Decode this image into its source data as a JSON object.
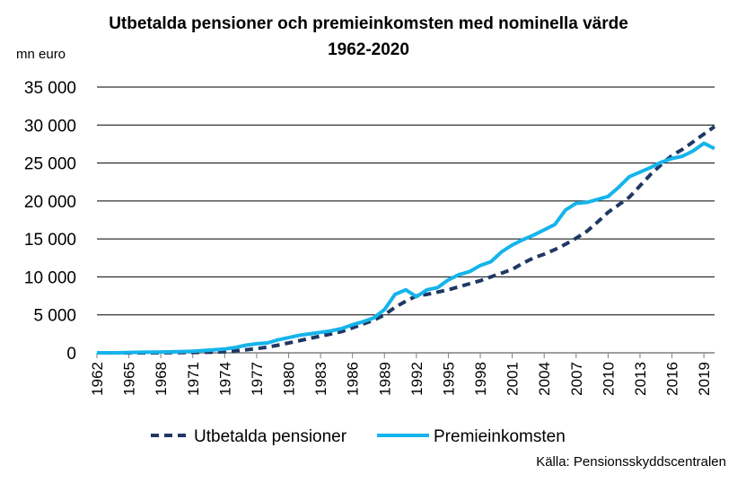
{
  "header": {
    "title_line1": "Utbetalda pensioner och premieinkomsten med nominella värde",
    "title_line2": "1962-2020",
    "unit": "mn euro"
  },
  "footer": {
    "source": "Källa: Pensionsskyddscentralen"
  },
  "chart_data": {
    "type": "line",
    "title": "Utbetalda pensioner och premieinkomsten med nominella värde 1962-2020",
    "ylabel": "mn euro",
    "xlabel": "",
    "ylim": [
      0,
      35000
    ],
    "xlim": [
      1962,
      2020
    ],
    "y_ticks": [
      0,
      5000,
      10000,
      15000,
      20000,
      25000,
      30000,
      35000
    ],
    "y_tick_labels": [
      "0",
      "5 000",
      "10 000",
      "15 000",
      "20 000",
      "25 000",
      "30 000",
      "35 000"
    ],
    "x_ticks": [
      1962,
      1965,
      1968,
      1971,
      1974,
      1977,
      1980,
      1983,
      1986,
      1989,
      1992,
      1995,
      1998,
      2001,
      2004,
      2007,
      2010,
      2013,
      2016,
      2019
    ],
    "x_tick_labels": [
      "1962",
      "1965",
      "1968",
      "1971",
      "1974",
      "1977",
      "1980",
      "1983",
      "1986",
      "1989",
      "1992",
      "1995",
      "1998",
      "2001",
      "2004",
      "2007",
      "2010",
      "2013",
      "2016",
      "2019"
    ],
    "grid": "horizontal",
    "legend_position": "bottom",
    "x": [
      1962,
      1963,
      1964,
      1965,
      1966,
      1967,
      1968,
      1969,
      1970,
      1971,
      1972,
      1973,
      1974,
      1975,
      1976,
      1977,
      1978,
      1979,
      1980,
      1981,
      1982,
      1983,
      1984,
      1985,
      1986,
      1987,
      1988,
      1989,
      1990,
      1991,
      1992,
      1993,
      1994,
      1995,
      1996,
      1997,
      1998,
      1999,
      2000,
      2001,
      2002,
      2003,
      2004,
      2005,
      2006,
      2007,
      2008,
      2009,
      2010,
      2011,
      2012,
      2013,
      2014,
      2015,
      2016,
      2017,
      2018,
      2019,
      2020
    ],
    "series": [
      {
        "name": "Utbetalda pensioner",
        "color": "#1f3864",
        "style": "dashed",
        "values": [
          0,
          0,
          0,
          0,
          0,
          0,
          10,
          20,
          30,
          50,
          70,
          100,
          150,
          250,
          400,
          550,
          750,
          1000,
          1300,
          1600,
          1900,
          2200,
          2500,
          2800,
          3300,
          3800,
          4300,
          5000,
          6000,
          6800,
          7500,
          7700,
          8000,
          8300,
          8700,
          9100,
          9500,
          10000,
          10500,
          11000,
          11800,
          12500,
          13000,
          13600,
          14300,
          15100,
          16000,
          17200,
          18500,
          19500,
          20500,
          22000,
          23500,
          24800,
          26000,
          26800,
          27800,
          28800,
          29800
        ]
      },
      {
        "name": "Premieinkomsten",
        "color": "#15b4ea",
        "style": "solid",
        "values": [
          0,
          0,
          0,
          50,
          70,
          90,
          110,
          130,
          160,
          200,
          300,
          400,
          500,
          700,
          1000,
          1200,
          1300,
          1700,
          2000,
          2300,
          2500,
          2700,
          2900,
          3200,
          3700,
          4100,
          4600,
          5700,
          7700,
          8300,
          7400,
          8300,
          8600,
          9600,
          10300,
          10700,
          11500,
          12000,
          13300,
          14200,
          14900,
          15500,
          16200,
          16900,
          18800,
          19700,
          19800,
          20200,
          20600,
          21800,
          23200,
          23800,
          24400,
          25100,
          25600,
          25900,
          26600,
          27600,
          26900
        ]
      }
    ]
  },
  "legend": {
    "items": [
      {
        "label": "Utbetalda pensioner"
      },
      {
        "label": "Premieinkomsten"
      }
    ]
  }
}
